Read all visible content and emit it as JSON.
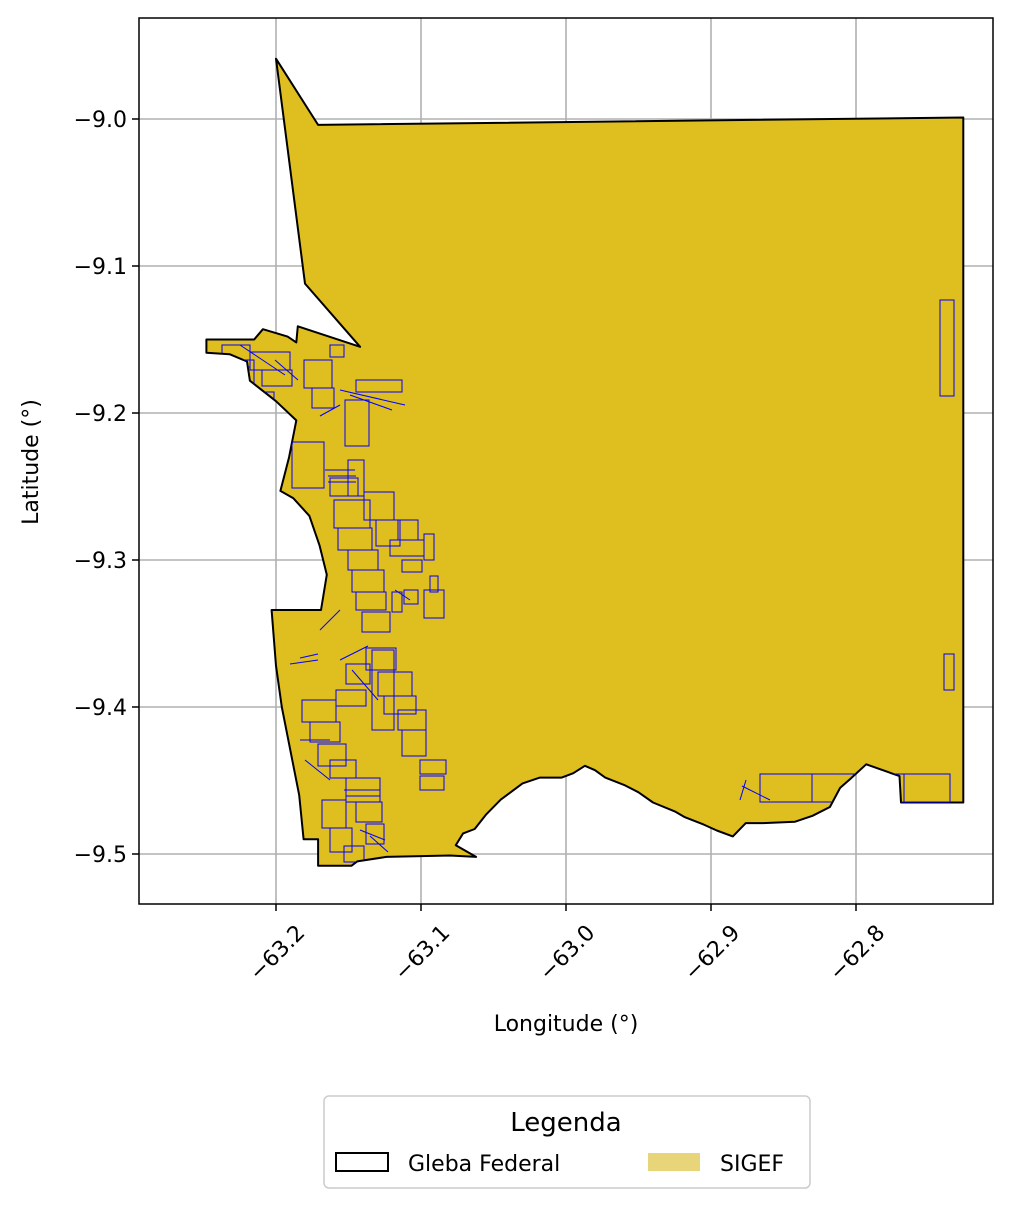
{
  "chart_data": {
    "type": "map",
    "xlabel": "Longitude (°)",
    "ylabel": "Latitude (°)",
    "xlim": [
      -63.294,
      -62.705
    ],
    "ylim": [
      -9.534,
      -8.931
    ],
    "x_ticks": [
      -63.2,
      -63.1,
      -63.0,
      -62.9,
      -62.8
    ],
    "x_tick_labels": [
      "−63.2",
      "−63.1",
      "−63.0",
      "−62.9",
      "−62.8"
    ],
    "y_ticks": [
      -9.0,
      -9.1,
      -9.2,
      -9.3,
      -9.4,
      -9.5
    ],
    "y_tick_labels": [
      "−9.0",
      "−9.1",
      "−9.2",
      "−9.3",
      "−9.4",
      "−9.5"
    ],
    "grid": true,
    "legend": {
      "title": "Legenda",
      "placement": "bottom-center, below axes",
      "entries": [
        {
          "label": "Gleba Federal",
          "style": "outline",
          "color": "#000000"
        },
        {
          "label": "SIGEF",
          "style": "fill",
          "color": "#e8d57a"
        }
      ]
    },
    "colors": {
      "gleba_fill": "#dfbe20",
      "gleba_edge": "#000000",
      "sigef_parcel_edge": "#0000ff",
      "sigef_legend_fill": "#e8d57a",
      "grid": "#b0b0b0"
    },
    "gleba_boundary": [
      [
        -63.2,
        -8.959
      ],
      [
        -63.171,
        -9.004
      ],
      [
        -62.726,
        -8.999
      ],
      [
        -62.726,
        -9.465
      ],
      [
        -62.769,
        -9.465
      ],
      [
        -62.77,
        -9.447
      ],
      [
        -62.793,
        -9.439
      ],
      [
        -62.804,
        -9.449
      ],
      [
        -62.811,
        -9.455
      ],
      [
        -62.818,
        -9.468
      ],
      [
        -62.83,
        -9.474
      ],
      [
        -62.842,
        -9.478
      ],
      [
        -62.864,
        -9.479
      ],
      [
        -62.876,
        -9.479
      ],
      [
        -62.885,
        -9.488
      ],
      [
        -62.896,
        -9.484
      ],
      [
        -62.905,
        -9.48
      ],
      [
        -62.918,
        -9.475
      ],
      [
        -62.925,
        -9.471
      ],
      [
        -62.94,
        -9.465
      ],
      [
        -62.95,
        -9.458
      ],
      [
        -62.96,
        -9.453
      ],
      [
        -62.973,
        -9.448
      ],
      [
        -62.98,
        -9.443
      ],
      [
        -62.987,
        -9.44
      ],
      [
        -62.995,
        -9.445
      ],
      [
        -63.003,
        -9.448
      ],
      [
        -63.018,
        -9.448
      ],
      [
        -63.03,
        -9.452
      ],
      [
        -63.045,
        -9.463
      ],
      [
        -63.055,
        -9.473
      ],
      [
        -63.063,
        -9.483
      ],
      [
        -63.071,
        -9.486
      ],
      [
        -63.076,
        -9.494
      ],
      [
        -63.062,
        -9.502
      ],
      [
        -63.08,
        -9.501
      ],
      [
        -63.124,
        -9.502
      ],
      [
        -63.144,
        -9.505
      ],
      [
        -63.148,
        -9.508
      ],
      [
        -63.171,
        -9.508
      ],
      [
        -63.171,
        -9.49
      ],
      [
        -63.181,
        -9.49
      ],
      [
        -63.184,
        -9.46
      ],
      [
        -63.19,
        -9.43
      ],
      [
        -63.196,
        -9.4
      ],
      [
        -63.2,
        -9.372
      ],
      [
        -63.203,
        -9.334
      ],
      [
        -63.18,
        -9.334
      ],
      [
        -63.169,
        -9.334
      ],
      [
        -63.165,
        -9.31
      ],
      [
        -63.17,
        -9.29
      ],
      [
        -63.177,
        -9.27
      ],
      [
        -63.188,
        -9.258
      ],
      [
        -63.197,
        -9.253
      ],
      [
        -63.191,
        -9.23
      ],
      [
        -63.186,
        -9.205
      ],
      [
        -63.2,
        -9.192
      ],
      [
        -63.218,
        -9.178
      ],
      [
        -63.22,
        -9.165
      ],
      [
        -63.232,
        -9.16
      ],
      [
        -63.248,
        -9.159
      ],
      [
        -63.248,
        -9.15
      ],
      [
        -63.215,
        -9.15
      ],
      [
        -63.209,
        -9.143
      ],
      [
        -63.192,
        -9.148
      ],
      [
        -63.186,
        -9.152
      ],
      [
        -63.185,
        -9.141
      ],
      [
        -63.142,
        -9.155
      ],
      [
        -63.18,
        -9.112
      ],
      [
        -63.2,
        -8.959
      ]
    ]
  }
}
